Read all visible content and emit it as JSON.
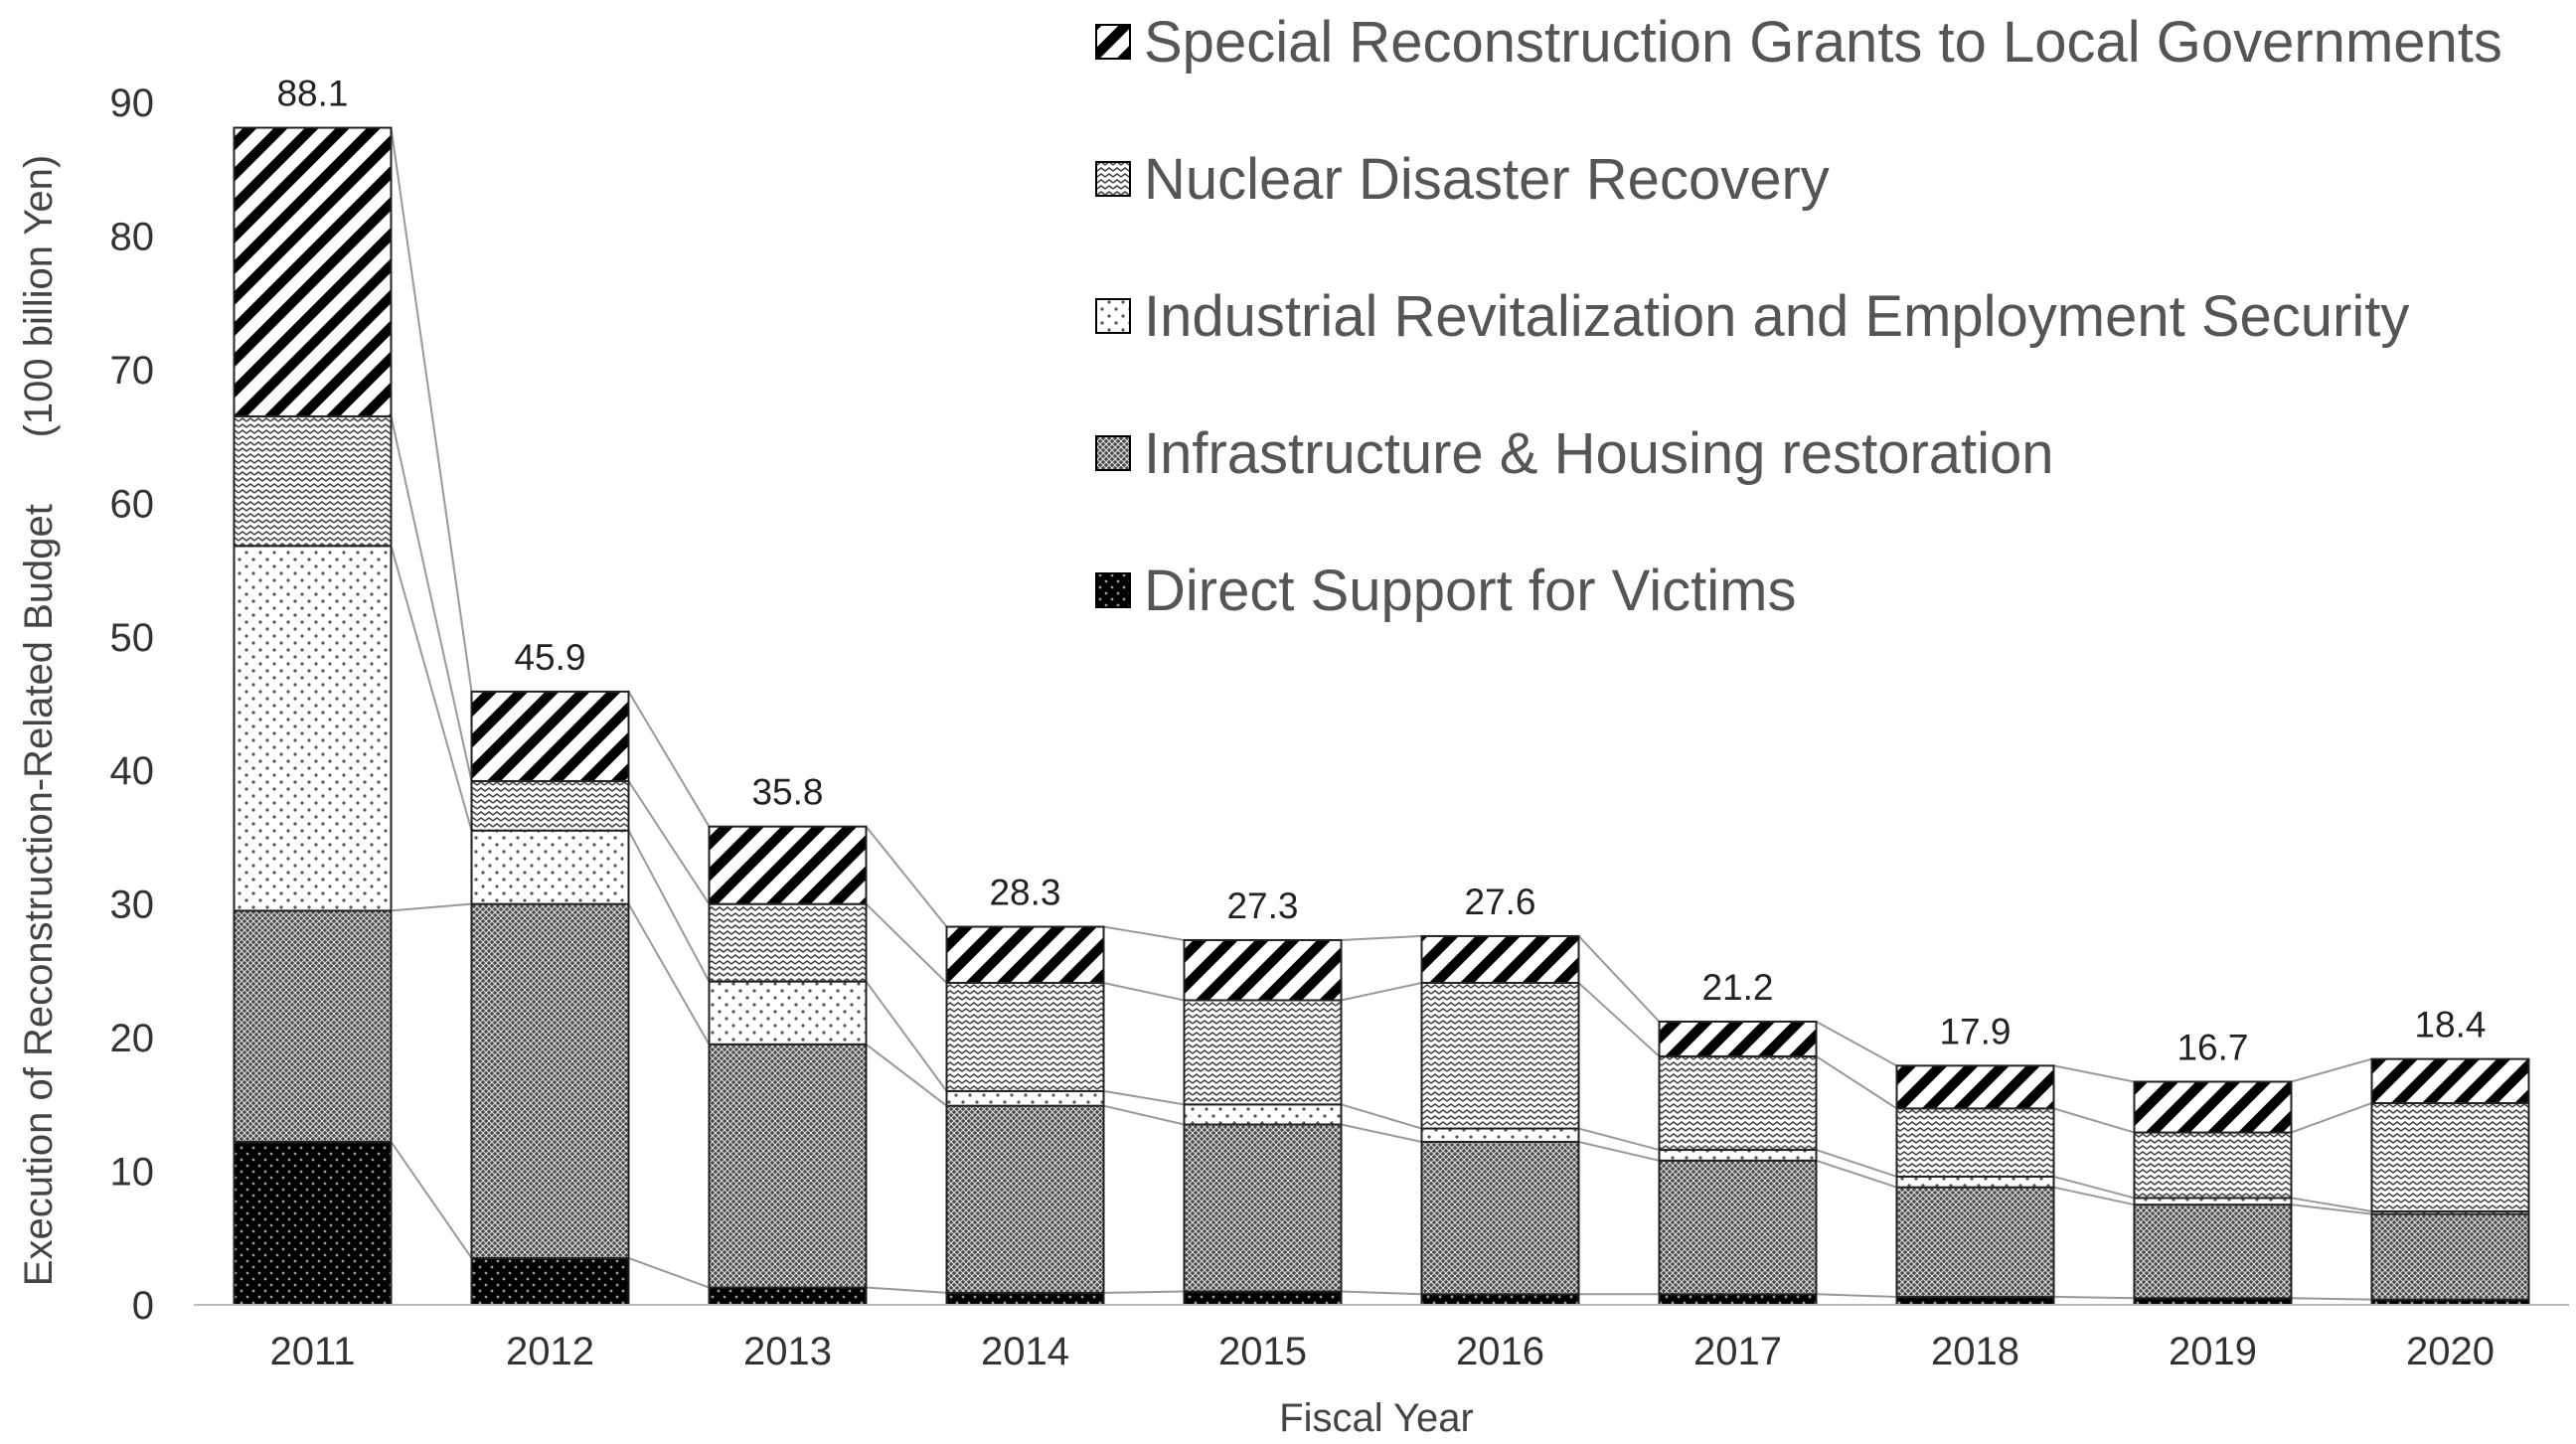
{
  "chart_data": {
    "type": "bar",
    "stacked": true,
    "title": "",
    "xlabel": "Fiscal Year",
    "ylabel": "Execution of Reconstruction-Related Budget      (100 billion Yen)",
    "ylim": [
      0,
      90
    ],
    "yticks": [
      0,
      10,
      20,
      30,
      40,
      50,
      60,
      70,
      80,
      90
    ],
    "grid": false,
    "legend_position": "top-right",
    "categories": [
      "2011",
      "2012",
      "2013",
      "2014",
      "2015",
      "2016",
      "2017",
      "2018",
      "2019",
      "2020"
    ],
    "totals": [
      "88.1",
      "45.9",
      "35.8",
      "28.3",
      "27.3",
      "27.6",
      "21.2",
      "17.9",
      "16.7",
      "18.4"
    ],
    "series": [
      {
        "name": "Direct Support for Victims",
        "pattern": "dots-black",
        "values": [
          12.2,
          3.5,
          1.3,
          0.9,
          1.0,
          0.8,
          0.8,
          0.6,
          0.5,
          0.4
        ]
      },
      {
        "name": "Infrastructure & Housing restoration",
        "pattern": "crosshatch-dark",
        "values": [
          17.3,
          26.5,
          18.2,
          14.0,
          12.5,
          11.4,
          10.0,
          8.2,
          7.0,
          6.4
        ]
      },
      {
        "name": "Industrial Revitalization and Employment Security",
        "pattern": "dots-light",
        "values": [
          27.3,
          5.5,
          4.7,
          1.1,
          1.5,
          1.0,
          0.8,
          0.8,
          0.5,
          0.2
        ]
      },
      {
        "name": "Nuclear Disaster Recovery",
        "pattern": "waves",
        "values": [
          9.7,
          3.7,
          5.8,
          8.1,
          7.8,
          10.9,
          7.0,
          5.1,
          4.9,
          8.1
        ]
      },
      {
        "name": "Special Reconstruction Grants to Local Governments",
        "pattern": "diagonal",
        "values": [
          21.6,
          6.7,
          5.8,
          4.2,
          4.5,
          3.5,
          2.6,
          3.2,
          3.8,
          3.3
        ]
      }
    ],
    "legend_order": [
      4,
      3,
      2,
      1,
      0
    ],
    "colors": {
      "bar_outline": "#222222",
      "connector": "#999999",
      "axis": "#bbbbbb",
      "text": "#333333"
    }
  }
}
